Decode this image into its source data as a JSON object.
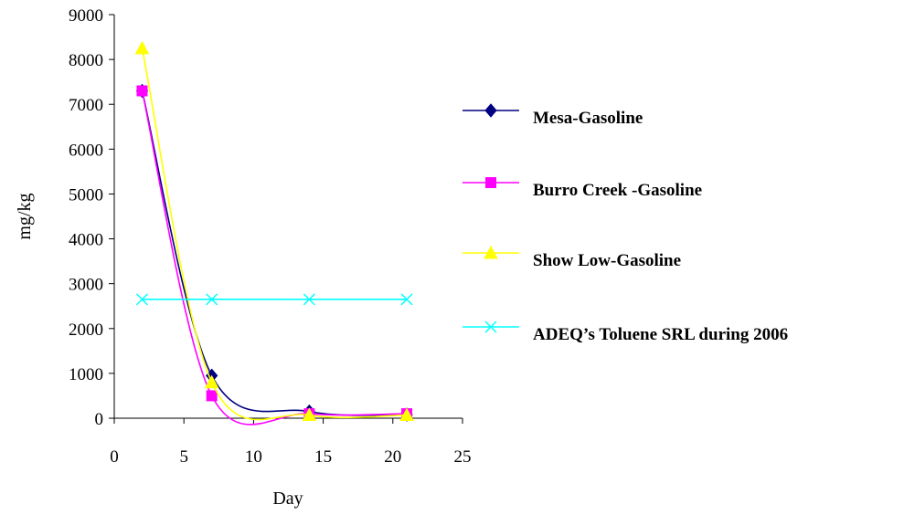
{
  "chart_data": {
    "type": "line",
    "xlabel": "Day",
    "ylabel": "mg/kg",
    "xlim": [
      0,
      25
    ],
    "ylim": [
      0,
      9000
    ],
    "x_ticks": [
      0,
      5,
      10,
      15,
      20,
      25
    ],
    "y_ticks": [
      0,
      1000,
      2000,
      3000,
      4000,
      5000,
      6000,
      7000,
      8000,
      9000
    ],
    "grid": false,
    "legend_position": "right",
    "series": [
      {
        "name": "Mesa-Gasoline",
        "color": "#000080",
        "marker": "diamond",
        "x": [
          2,
          7,
          14,
          21
        ],
        "y": [
          7300,
          950,
          150,
          80
        ]
      },
      {
        "name": "Burro Creek -Gasoline",
        "color": "#ff00ff",
        "marker": "square",
        "x": [
          2,
          7,
          14,
          21
        ],
        "y": [
          7300,
          500,
          100,
          100
        ]
      },
      {
        "name": "Show Low-Gasoline",
        "color": "#ffff00",
        "marker": "triangle",
        "x": [
          2,
          7,
          14,
          21
        ],
        "y": [
          8250,
          800,
          70,
          70
        ]
      },
      {
        "name": "ADEQ’s Toluene SRL during 2006",
        "color": "#00ffff",
        "marker": "x",
        "x": [
          2,
          7,
          14,
          21
        ],
        "y": [
          2650,
          2650,
          2650,
          2650
        ]
      }
    ]
  }
}
